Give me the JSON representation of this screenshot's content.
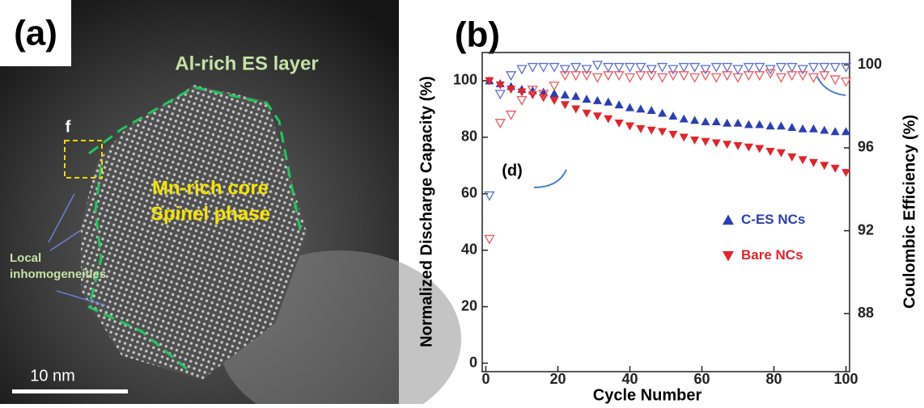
{
  "panel_a": {
    "label": "(a)",
    "shell_label": "Al-rich ES layer",
    "box_label": "f",
    "core_label_1": "Mn-rich core",
    "core_label_2": "Spinel phase",
    "note_1": "Local",
    "note_2": "inhomogeneities",
    "scale_bar": "10 nm"
  },
  "chart_data": {
    "type": "scatter",
    "panel_label": "(b)",
    "annotation": "(d)",
    "xlabel": "Cycle Number",
    "ylabel": "Normalized Discharge Capacity (%)",
    "y2label": "Coulombic Efficiency (%)",
    "xlim": [
      -1,
      101
    ],
    "xticks": [
      0,
      20,
      40,
      60,
      80,
      100
    ],
    "ylim": [
      -3,
      110
    ],
    "yticks": [
      0,
      20,
      40,
      60,
      80,
      100
    ],
    "y2lim": [
      85.2,
      100.6
    ],
    "y2ticks": [
      88,
      92,
      96,
      100
    ],
    "legend": "center right",
    "x": [
      1,
      4,
      7,
      10,
      13,
      16,
      19,
      22,
      25,
      28,
      31,
      34,
      37,
      40,
      43,
      46,
      49,
      52,
      55,
      58,
      61,
      64,
      67,
      70,
      73,
      76,
      79,
      82,
      85,
      88,
      91,
      94,
      97,
      100
    ],
    "series": [
      {
        "name": "C-ES NCs",
        "color": "#2b3fb5",
        "marker": "up-filled",
        "values": [
          100,
          99,
          98,
          97,
          96.5,
          96,
          95.5,
          95,
          94.5,
          93.5,
          93,
          92.5,
          91.5,
          90.5,
          90,
          89.5,
          88.5,
          87.5,
          86.5,
          86,
          85.5,
          85.5,
          85,
          85,
          84.5,
          84.5,
          84,
          84,
          83.5,
          83,
          83,
          82.5,
          82,
          82
        ]
      },
      {
        "name": "Bare NCs",
        "color": "#e3232c",
        "marker": "down-filled",
        "values": [
          100,
          98.5,
          97,
          96,
          95,
          94,
          93,
          91.5,
          90,
          88.5,
          87.5,
          86.5,
          85,
          84,
          83,
          82.5,
          82,
          81,
          80,
          79,
          78.5,
          78,
          77.5,
          77,
          76.5,
          76,
          75,
          74.5,
          73,
          72,
          71,
          70,
          69,
          67.5
        ]
      },
      {
        "color": "#5a6fd0",
        "marker": "down-open",
        "axis": "y2",
        "values": [
          93.7,
          98.6,
          99.5,
          99.8,
          99.9,
          99.9,
          99.9,
          99.8,
          99.9,
          99.8,
          100,
          99.9,
          99.9,
          99.9,
          99.9,
          99.8,
          99.9,
          99.8,
          99.9,
          99.9,
          99.8,
          99.9,
          99.9,
          99.8,
          99.9,
          99.9,
          99.8,
          99.9,
          99.9,
          99.8,
          99.9,
          99.9,
          99.9,
          99.9
        ]
      },
      {
        "color": "#ea5a60",
        "marker": "down-open",
        "axis": "y2",
        "values": [
          91.6,
          97.2,
          97.6,
          98.3,
          98.8,
          98.6,
          99.0,
          99.5,
          99.5,
          99.5,
          99.4,
          99.5,
          99.5,
          99.4,
          99.5,
          99.5,
          99.4,
          99.5,
          99.5,
          99.4,
          99.5,
          99.4,
          99.5,
          99.4,
          99.5,
          99.5,
          99.6,
          99.4,
          99.5,
          99.5,
          99.4,
          99.5,
          99.3,
          99.2
        ]
      }
    ]
  }
}
